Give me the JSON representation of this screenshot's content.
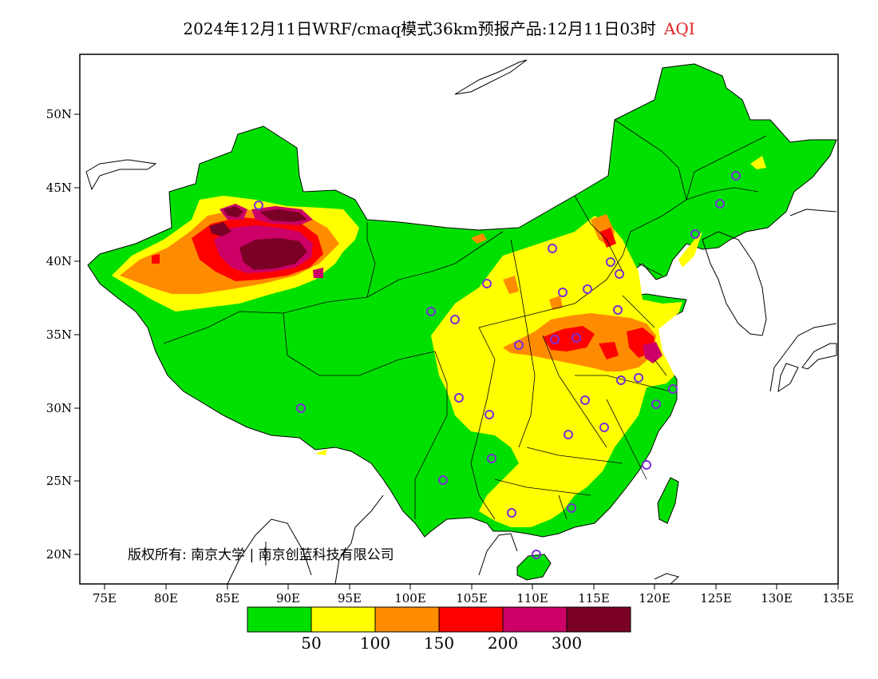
{
  "title": {
    "main": "2024年12月11日WRF/cmaq模式36km预报产品:12月11日03时",
    "variable": "AQI"
  },
  "map": {
    "lat_ticks": [
      "50N",
      "45N",
      "40N",
      "35N",
      "30N",
      "25N",
      "20N"
    ],
    "lon_ticks": [
      "75E",
      "80E",
      "85E",
      "90E",
      "95E",
      "100E",
      "105E",
      "110E",
      "115E",
      "120E",
      "125E",
      "130E",
      "135E"
    ],
    "copyright": "版权所有: 南京大学 | 南京创蓝科技有限公司"
  },
  "legend": {
    "colors": [
      "#00e000",
      "#ffff00",
      "#ff8c00",
      "#ff0000",
      "#cc0066",
      "#7a0025"
    ],
    "labels": [
      "50",
      "100",
      "150",
      "200",
      "300"
    ]
  },
  "colors": {
    "ocean": "#ffffff",
    "station_marker": "#7b2fd6",
    "title_accent": "#e02424"
  }
}
